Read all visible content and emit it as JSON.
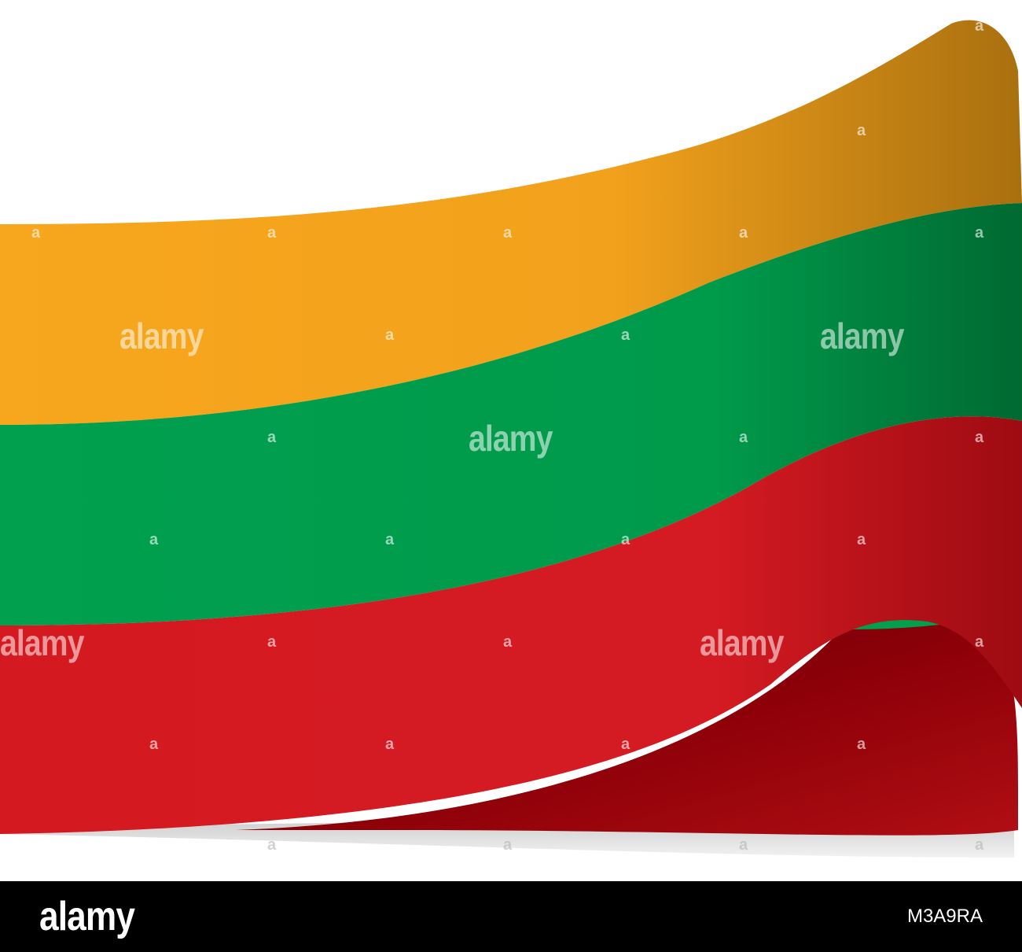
{
  "watermark": {
    "brand": "alamy",
    "mark": "a"
  },
  "footer": {
    "logo": "alamy",
    "image_id": "M3A9RA"
  },
  "colors": {
    "yellow": "#F7A71D",
    "green": "#00A04F",
    "red": "#D51921",
    "footer_bg": "#000000"
  }
}
